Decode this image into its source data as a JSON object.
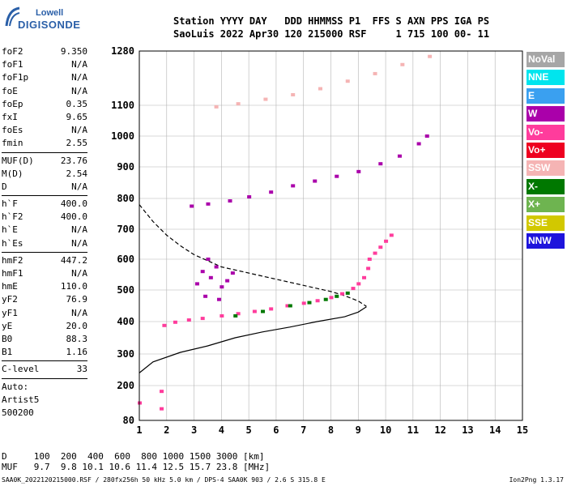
{
  "logo": {
    "line1": "Lowell",
    "line2": "DIGISONDE"
  },
  "header": {
    "line1": "Station YYYY DAY   DDD HHMMSS P1  FFS S AXN PPS IGA PS",
    "line2": "SaoLuis 2022 Apr30 120 215000 RSF     1 715 100 00- 11"
  },
  "params": [
    {
      "k": "foF2",
      "v": "9.350"
    },
    {
      "k": "foF1",
      "v": "N/A"
    },
    {
      "k": "foF1p",
      "v": "N/A"
    },
    {
      "k": "foE",
      "v": "N/A"
    },
    {
      "k": "foEp",
      "v": "0.35"
    },
    {
      "k": "fxI",
      "v": "9.65"
    },
    {
      "k": "foEs",
      "v": "N/A"
    },
    {
      "k": "fmin",
      "v": "2.55"
    },
    {
      "sep": true
    },
    {
      "k": "MUF(D)",
      "v": "23.76"
    },
    {
      "k": "M(D)",
      "v": "2.54"
    },
    {
      "k": "D",
      "v": "N/A"
    },
    {
      "sep": true
    },
    {
      "k": "h`F",
      "v": "400.0"
    },
    {
      "k": "h`F2",
      "v": "400.0"
    },
    {
      "k": "h`E",
      "v": "N/A"
    },
    {
      "k": "h`Es",
      "v": "N/A"
    },
    {
      "sep": true
    },
    {
      "k": "hmF2",
      "v": "447.2"
    },
    {
      "k": "hmF1",
      "v": "N/A"
    },
    {
      "k": "hmE",
      "v": "110.0"
    },
    {
      "k": "yF2",
      "v": "76.9"
    },
    {
      "k": "yF1",
      "v": "N/A"
    },
    {
      "k": "yE",
      "v": "20.0"
    },
    {
      "k": "B0",
      "v": "88.3"
    },
    {
      "k": "B1",
      "v": "1.16"
    },
    {
      "sep": true
    },
    {
      "k": "C-level",
      "v": "33"
    },
    {
      "sep": true
    },
    {
      "t": "Auto:"
    },
    {
      "t": "Artist5"
    },
    {
      "t": "500200"
    }
  ],
  "legend": [
    {
      "label": "NoVal",
      "color": "#a6a6a6"
    },
    {
      "label": "NNE",
      "color": "#00e5ee"
    },
    {
      "label": "E",
      "color": "#3aa0f0"
    },
    {
      "label": "W",
      "color": "#aa00aa"
    },
    {
      "label": "Vo-",
      "color": "#ff3c9c"
    },
    {
      "label": "Vo+",
      "color": "#ee0020"
    },
    {
      "label": "SSW",
      "color": "#f5b4b4"
    },
    {
      "label": "X-",
      "color": "#007800"
    },
    {
      "label": "X+",
      "color": "#6eb450"
    },
    {
      "label": "SSE",
      "color": "#d2c800"
    },
    {
      "label": "NNW",
      "color": "#1e14dc"
    }
  ],
  "bottom": {
    "line1": "D     100  200  400  600  800 1000 1500 3000 [km]",
    "line2": "MUF   9.7  9.8 10.1 10.6 11.4 12.5 15.7 23.8 [MHz]"
  },
  "footer": "SAA0K_2022120215000.RSF / 280fx256h 50 kHz 5.0 km / DPS-4 SAA0K 903 / 2.6 S 315.8 E",
  "version": "Ion2Png 1.3.17",
  "chart_data": {
    "type": "scatter",
    "x_ticks": [
      1,
      2,
      3,
      4,
      5,
      6,
      7,
      8,
      9,
      10,
      11,
      12,
      13,
      14,
      15
    ],
    "y_ticks": [
      80,
      200,
      300,
      400,
      500,
      600,
      700,
      800,
      900,
      1000,
      1100,
      1280
    ],
    "xlim": [
      1,
      15
    ],
    "ylim": [
      80,
      1280
    ],
    "grid": true,
    "series": [
      {
        "name": "O-trace F2",
        "color": "#ff3c9c",
        "points": [
          [
            1.9,
            388
          ],
          [
            2.3,
            398
          ],
          [
            2.8,
            405
          ],
          [
            3.3,
            410
          ],
          [
            4.0,
            418
          ],
          [
            4.6,
            425
          ],
          [
            5.2,
            432
          ],
          [
            5.8,
            440
          ],
          [
            6.4,
            450
          ],
          [
            7.0,
            458
          ],
          [
            7.5,
            466
          ],
          [
            8.0,
            476
          ],
          [
            8.4,
            488
          ],
          [
            8.8,
            505
          ],
          [
            9.0,
            520
          ],
          [
            9.2,
            540
          ],
          [
            9.35,
            570
          ]
        ]
      },
      {
        "name": "X-trace",
        "color": "#007800",
        "points": [
          [
            4.5,
            418
          ],
          [
            5.5,
            432
          ],
          [
            6.5,
            450
          ],
          [
            7.2,
            460
          ],
          [
            7.8,
            470
          ],
          [
            8.2,
            480
          ],
          [
            8.6,
            490
          ]
        ]
      },
      {
        "name": "Second hop",
        "color": "#aa00aa",
        "points": [
          [
            2.9,
            775
          ],
          [
            3.5,
            782
          ],
          [
            4.3,
            792
          ],
          [
            5.0,
            805
          ],
          [
            5.8,
            820
          ],
          [
            6.6,
            840
          ],
          [
            7.4,
            855
          ],
          [
            8.2,
            870
          ],
          [
            9.0,
            885
          ],
          [
            9.8,
            910
          ],
          [
            10.5,
            935
          ],
          [
            11.2,
            975
          ],
          [
            11.5,
            1000
          ]
        ]
      },
      {
        "name": "Third hop",
        "color": "#f5b4b4",
        "points": [
          [
            3.8,
            1095
          ],
          [
            4.6,
            1105
          ],
          [
            5.6,
            1120
          ],
          [
            6.6,
            1135
          ],
          [
            7.6,
            1155
          ],
          [
            8.6,
            1180
          ],
          [
            9.6,
            1205
          ],
          [
            10.6,
            1235
          ],
          [
            11.6,
            1262
          ]
        ]
      },
      {
        "name": "Spread F",
        "color": "#aa00aa",
        "points": [
          [
            3.1,
            520
          ],
          [
            3.3,
            560
          ],
          [
            3.5,
            600
          ],
          [
            3.6,
            540
          ],
          [
            3.8,
            575
          ],
          [
            4.0,
            510
          ],
          [
            4.2,
            530
          ],
          [
            4.4,
            555
          ],
          [
            3.4,
            480
          ],
          [
            3.9,
            470
          ]
        ]
      },
      {
        "name": "Other echoes",
        "color": "#ff3c9c",
        "points": [
          [
            9.4,
            600
          ],
          [
            9.6,
            620
          ],
          [
            9.8,
            640
          ],
          [
            10.0,
            660
          ],
          [
            10.2,
            680
          ],
          [
            1.8,
            180
          ],
          [
            1.8,
            120
          ],
          [
            1.0,
            140
          ]
        ]
      }
    ],
    "profile": {
      "points": [
        [
          1.0,
          240
        ],
        [
          1.5,
          275
        ],
        [
          2.5,
          305
        ],
        [
          3.5,
          325
        ],
        [
          4.5,
          350
        ],
        [
          5.5,
          368
        ],
        [
          6.5,
          383
        ],
        [
          7.5,
          400
        ],
        [
          8.5,
          415
        ],
        [
          9.0,
          430
        ],
        [
          9.3,
          447
        ]
      ]
    },
    "dashed_curve": {
      "points": [
        [
          1.0,
          780
        ],
        [
          1.5,
          725
        ],
        [
          2.0,
          680
        ],
        [
          2.5,
          645
        ],
        [
          3.0,
          615
        ],
        [
          3.5,
          595
        ],
        [
          4.0,
          575
        ],
        [
          5.0,
          555
        ],
        [
          6.0,
          535
        ],
        [
          7.0,
          515
        ],
        [
          8.0,
          495
        ],
        [
          8.5,
          482
        ],
        [
          9.0,
          465
        ],
        [
          9.3,
          448
        ]
      ]
    }
  }
}
